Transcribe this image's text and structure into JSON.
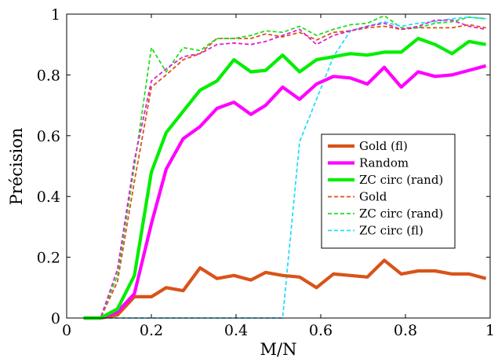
{
  "chart_data": {
    "type": "line",
    "xlabel": "M/N",
    "ylabel": "Précision",
    "xlim": [
      0,
      1
    ],
    "ylim": [
      0,
      1
    ],
    "x_ticks": [
      "0",
      "0.2",
      "0.4",
      "0.6",
      "0.8",
      "1"
    ],
    "y_ticks": [
      "0",
      "0.2",
      "0.4",
      "0.6",
      "0.8",
      "1"
    ],
    "grid": false,
    "legend_position": "center-right",
    "x": [
      0.04,
      0.08,
      0.12,
      0.16,
      0.2,
      0.235,
      0.275,
      0.315,
      0.355,
      0.395,
      0.435,
      0.47,
      0.51,
      0.55,
      0.59,
      0.63,
      0.67,
      0.71,
      0.75,
      0.79,
      0.83,
      0.87,
      0.91,
      0.95,
      0.99
    ],
    "series": [
      {
        "name": "Gold (fl)",
        "color": "#d95319",
        "style": "solid-thick",
        "values": [
          0,
          0,
          0.01,
          0.07,
          0.07,
          0.1,
          0.09,
          0.165,
          0.13,
          0.14,
          0.125,
          0.15,
          0.14,
          0.135,
          0.1,
          0.145,
          0.14,
          0.135,
          0.19,
          0.145,
          0.155,
          0.155,
          0.145,
          0.145,
          0.13
        ]
      },
      {
        "name": "Random",
        "color": "#ff00ff",
        "style": "solid-thick",
        "values": [
          0,
          0,
          0.02,
          0.08,
          0.31,
          0.49,
          0.59,
          0.63,
          0.69,
          0.71,
          0.67,
          0.7,
          0.76,
          0.72,
          0.77,
          0.795,
          0.79,
          0.77,
          0.825,
          0.76,
          0.81,
          0.795,
          0.8,
          0.815,
          0.83
        ]
      },
      {
        "name": "ZC circ (rand)",
        "color": "#00ee00",
        "style": "solid-thick",
        "values": [
          0,
          0,
          0.03,
          0.14,
          0.48,
          0.61,
          0.68,
          0.75,
          0.78,
          0.85,
          0.81,
          0.815,
          0.865,
          0.81,
          0.85,
          0.86,
          0.87,
          0.865,
          0.875,
          0.875,
          0.92,
          0.9,
          0.87,
          0.91,
          0.9
        ]
      },
      {
        "name": "Gold",
        "color": "#d95319",
        "style": "dashed",
        "values": [
          0,
          0,
          0.12,
          0.45,
          0.76,
          0.8,
          0.85,
          0.87,
          0.92,
          0.92,
          0.92,
          0.935,
          0.925,
          0.94,
          0.915,
          0.94,
          0.945,
          0.955,
          0.96,
          0.95,
          0.955,
          0.955,
          0.955,
          0.965,
          0.955
        ]
      },
      {
        "name": "ZC circ (rand)",
        "color": "#22dd22",
        "style": "dashed",
        "values": [
          0,
          0,
          0.14,
          0.5,
          0.89,
          0.81,
          0.89,
          0.88,
          0.92,
          0.92,
          0.93,
          0.945,
          0.94,
          0.96,
          0.93,
          0.95,
          0.965,
          0.97,
          0.995,
          0.955,
          0.955,
          0.97,
          0.975,
          0.99,
          0.985
        ]
      },
      {
        "name": "ZC circ (fl)",
        "color": "#22ddff",
        "style": "dashed",
        "values": [
          0,
          0,
          0,
          0,
          0,
          0,
          0,
          0,
          0,
          0,
          0,
          0,
          0,
          0.58,
          0.72,
          0.86,
          0.945,
          0.96,
          0.975,
          0.96,
          0.97,
          0.975,
          0.985,
          0.99,
          0.985
        ]
      },
      {
        "name": "Random",
        "color": "#dd22cc",
        "style": "dashed",
        "values": [
          0,
          0,
          0.16,
          0.52,
          0.78,
          0.82,
          0.86,
          0.87,
          0.9,
          0.905,
          0.9,
          0.91,
          0.93,
          0.95,
          0.9,
          0.93,
          0.945,
          0.96,
          0.97,
          0.95,
          0.96,
          0.98,
          0.98,
          0.96,
          0.95
        ]
      }
    ],
    "legend": [
      {
        "label": "Gold (fl)",
        "color": "#d95319",
        "style": "solid-thick"
      },
      {
        "label": "Random",
        "color": "#ff00ff",
        "style": "solid-thick"
      },
      {
        "label": "ZC circ (rand)",
        "color": "#00ee00",
        "style": "solid-thick"
      },
      {
        "label": "Gold",
        "color": "#d95319",
        "style": "dashed"
      },
      {
        "label": "ZC circ (rand)",
        "color": "#22dd22",
        "style": "dashed"
      },
      {
        "label": "ZC circ (fl)",
        "color": "#22ddff",
        "style": "dashed"
      }
    ]
  }
}
